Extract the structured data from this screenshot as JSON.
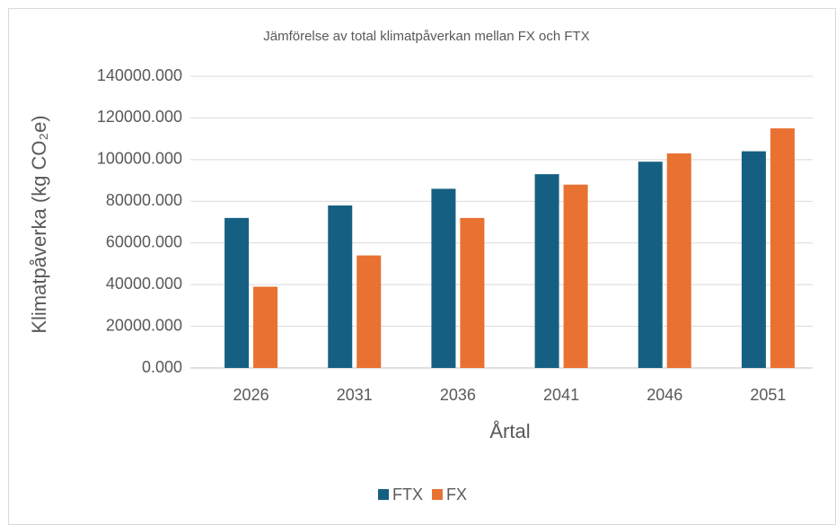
{
  "chart_data": {
    "type": "bar",
    "title": "Jämförelse av total klimatpåverkan mellan FX och FTX",
    "x_label": "Årtal",
    "y_label": "Klimatpåverka (kg CO₂e)",
    "categories": [
      "2026",
      "2031",
      "2036",
      "2041",
      "2046",
      "2051"
    ],
    "series": [
      {
        "name": "FTX",
        "color": "#156082",
        "values": [
          72000,
          78000,
          86000,
          93000,
          99000,
          104000
        ]
      },
      {
        "name": "FX",
        "color": "#e97132",
        "values": [
          39000,
          54000,
          72000,
          88000,
          103000,
          115000
        ]
      }
    ],
    "ylim": [
      0,
      140000
    ],
    "yticks": [
      {
        "value": 0,
        "label": "0.000"
      },
      {
        "value": 20000,
        "label": "20000.000"
      },
      {
        "value": 40000,
        "label": "40000.000"
      },
      {
        "value": 60000,
        "label": "60000.000"
      },
      {
        "value": 80000,
        "label": "80000.000"
      },
      {
        "value": 100000,
        "label": "100000.000"
      },
      {
        "value": 120000,
        "label": "120000.000"
      },
      {
        "value": 140000,
        "label": "140000.000"
      }
    ],
    "grid": true,
    "legend": "bottom"
  }
}
